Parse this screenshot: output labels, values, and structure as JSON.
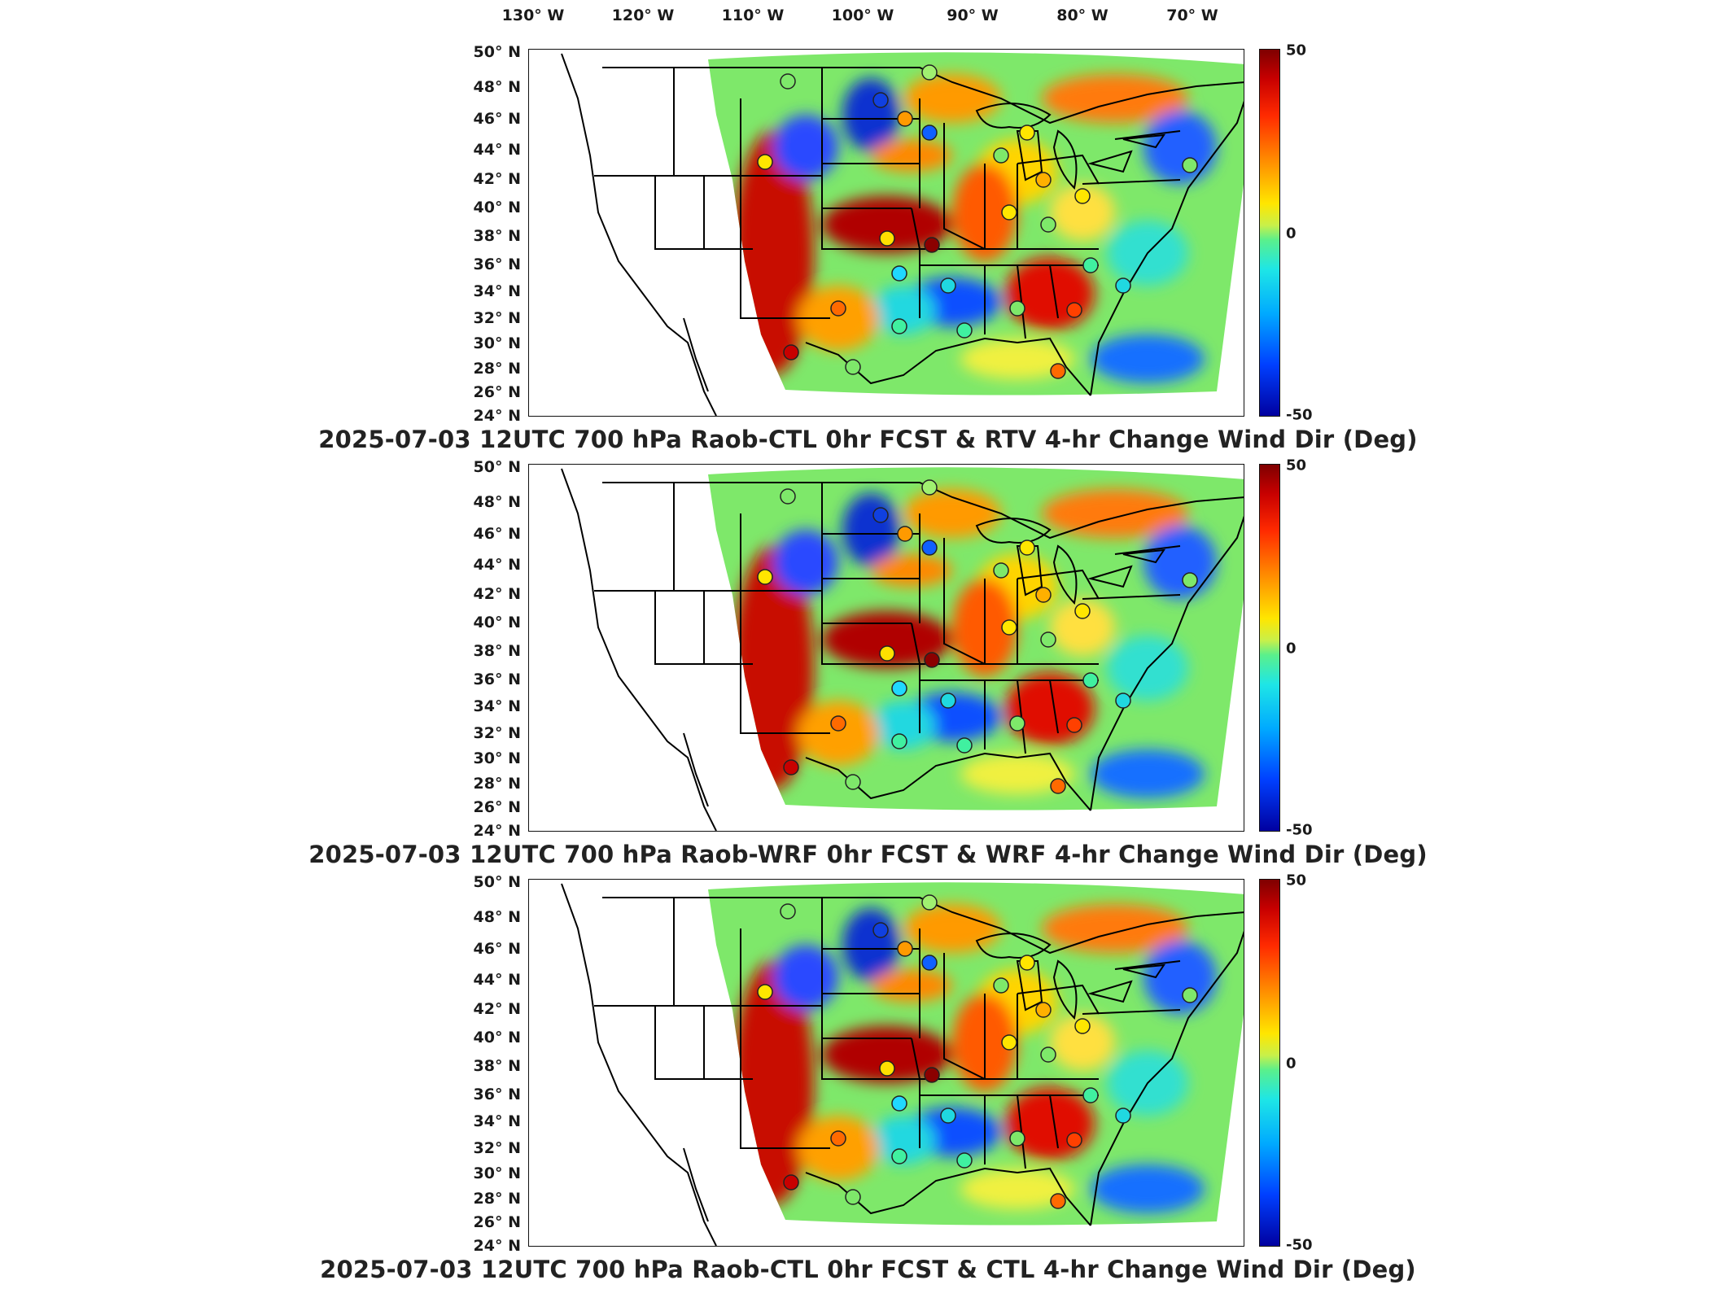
{
  "longitude_labels": [
    "130° W",
    "120° W",
    "110° W",
    "100° W",
    "90° W",
    "80° W",
    "70° W"
  ],
  "latitude_labels": [
    "50° N",
    "48° N",
    "46° N",
    "44° N",
    "42° N",
    "40° N",
    "38° N",
    "36° N",
    "34° N",
    "32° N",
    "30° N",
    "28° N",
    "26° N",
    "24° N"
  ],
  "colorbar": {
    "max_label": "50",
    "mid_label": "0",
    "min_label": "-50",
    "colors": [
      "#7f0000",
      "#ff2a00",
      "#ff8a00",
      "#ffe600",
      "#5af08c",
      "#1ee6e6",
      "#00aaff",
      "#0040ff",
      "#0000a0"
    ]
  },
  "panels": [
    {
      "title": "2025-07-03 12UTC 700 hPa Raob-CTL 0hr FCST & RTV 4-hr Change Wind Dir (Deg)"
    },
    {
      "title": "2025-07-03 12UTC 700 hPa Raob-WRF 0hr FCST & WRF 4-hr Change Wind Dir (Deg)"
    },
    {
      "title": "2025-07-03 12UTC 700 hPa Raob-CTL 0hr FCST & CTL 4-hr Change Wind Dir (Deg)"
    }
  ]
}
